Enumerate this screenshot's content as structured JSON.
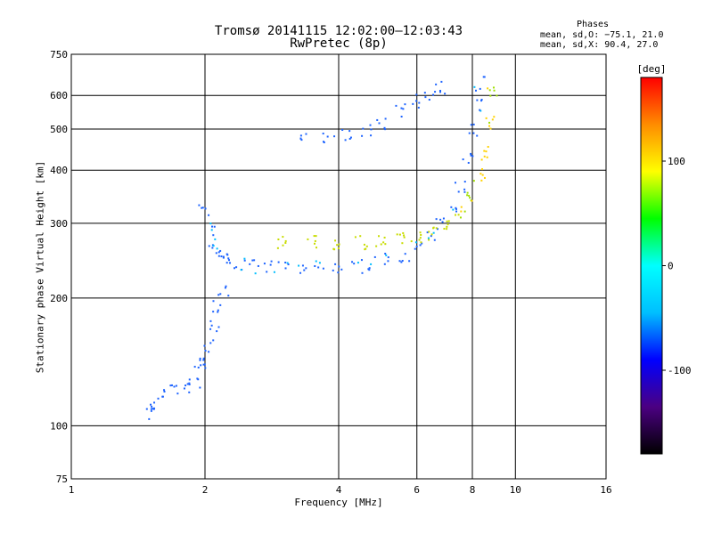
{
  "chart_data": {
    "type": "scatter",
    "title": "Tromsø 20141115 12:02:00–12:03:43",
    "subtitle": "RwPretec (8p)",
    "xlabel": "Frequency [MHz]",
    "ylabel": "Stationary phase Virtual Height [km]",
    "x_scale": "log2",
    "y_scale": "log",
    "xlim": [
      1,
      16
    ],
    "ylim": [
      75,
      750
    ],
    "x_ticks": [
      1,
      2,
      4,
      6,
      8,
      10,
      16
    ],
    "y_ticks": [
      75,
      100,
      200,
      300,
      400,
      500,
      600,
      750
    ],
    "grid": true,
    "phase_stats": {
      "title": "Phases",
      "o_line": "mean, sd,O: −75.1, 21.0",
      "x_line": "mean, sd,X:  90.4, 27.0"
    },
    "colorbar": {
      "label": "[deg]",
      "range": [
        -180,
        180
      ],
      "ticks": [
        100,
        0,
        -100
      ],
      "colormap": [
        "#000000",
        "#4b0082",
        "#0000ff",
        "#00bfff",
        "#00ffff",
        "#00ff00",
        "#ffff00",
        "#ff8c00",
        "#ff0000"
      ]
    },
    "series": [
      {
        "description": "O-trace F layer: main curved echo",
        "color_hint": "#1e64ff",
        "x": [
          2.0,
          2.05,
          2.1,
          2.15,
          2.2,
          2.3,
          2.4,
          2.6,
          2.8,
          3.0,
          3.3,
          3.6,
          4.0,
          4.4,
          4.8,
          5.2,
          5.6,
          6.0,
          6.4,
          6.8,
          7.2,
          7.5,
          7.8,
          8.0,
          8.2,
          8.3
        ],
        "y": [
          320,
          290,
          270,
          258,
          250,
          244,
          240,
          238,
          236,
          235,
          234,
          235,
          236,
          238,
          241,
          246,
          253,
          263,
          277,
          297,
          330,
          370,
          430,
          500,
          570,
          640
        ]
      },
      {
        "description": "X-trace F layer: upper curved echo",
        "color_hint": "#c8dc00",
        "x": [
          3.0,
          3.5,
          4.0,
          4.5,
          5.0,
          5.5,
          6.0,
          6.5,
          7.0,
          7.5,
          8.0,
          8.3,
          8.5,
          8.7,
          8.9
        ],
        "y": [
          272,
          270,
          270,
          271,
          272,
          274,
          278,
          285,
          297,
          318,
          350,
          390,
          440,
          520,
          620
        ]
      },
      {
        "description": "Oblique / upper branch echo",
        "color_hint": "#1e64ff",
        "x": [
          3.3,
          3.8,
          4.2,
          4.6,
          5.0,
          5.5,
          6.0,
          6.4,
          6.8
        ],
        "y": [
          470,
          475,
          485,
          500,
          520,
          550,
          580,
          610,
          630
        ]
      },
      {
        "description": "Lower E/Es region spread echo",
        "color_hint": "#1e64ff",
        "x": [
          1.5,
          1.55,
          1.6,
          1.7,
          1.8,
          1.9,
          1.95,
          2.0,
          2.05,
          2.1,
          2.15,
          2.2
        ],
        "y": [
          108,
          112,
          118,
          120,
          123,
          128,
          135,
          145,
          155,
          170,
          190,
          210
        ]
      }
    ]
  }
}
